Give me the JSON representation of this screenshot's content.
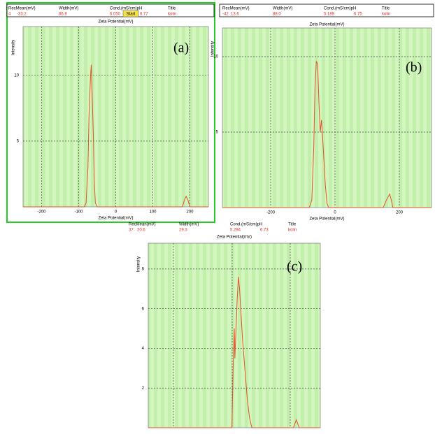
{
  "chart_data": [
    {
      "type": "line",
      "panel_label": "(a)",
      "annotation": "Start",
      "header": {
        "labels": [
          "RecMean(mV)",
          "Width(mV)",
          "Cond.(mS/cm)pH",
          "Title"
        ],
        "values": [
          "4",
          "-33.2",
          "86.9",
          "6.050",
          "6.77",
          "kolin"
        ]
      },
      "top_label": "Zeta Potential(mV)",
      "xlabel": "Zeta Potential(mV)",
      "ylabel": "Intensity",
      "x": [
        -250,
        -85,
        -80,
        -75,
        -72,
        -70,
        -68,
        -66,
        -64,
        -62,
        -60,
        -58,
        -55,
        -50,
        180,
        185,
        190,
        195,
        200,
        250
      ],
      "values": [
        0,
        0,
        0.3,
        3,
        7,
        8.5,
        10,
        10.8,
        9,
        7,
        5,
        2,
        0.3,
        0,
        0,
        0.5,
        0.8,
        0.5,
        0,
        0
      ],
      "color": "#e8502a",
      "xlim": [
        -250,
        250
      ],
      "ylim": [
        0,
        13.7
      ],
      "xticks": [
        -200,
        -100,
        0,
        100,
        200
      ],
      "yticks": [
        5,
        10
      ],
      "grid": true
    },
    {
      "type": "line",
      "panel_label": "(b)",
      "header": {
        "labels": [
          "RecMean(mV)",
          "Width(mV)",
          "Cond.(mS/cm)pH",
          "Title"
        ],
        "values": [
          "-42",
          "13.6",
          "88.0",
          "5.189",
          "6.75",
          "kolin"
        ]
      },
      "top_label": "Zeta Potential(mV)",
      "xlabel": "Zeta Potential(mV)",
      "ylabel": "Intensity",
      "x": [
        -350,
        -80,
        -72,
        -66,
        -62,
        -58,
        -54,
        -50,
        -46,
        -42,
        -38,
        -34,
        -30,
        -25,
        -20,
        150,
        160,
        170,
        175,
        180,
        300
      ],
      "values": [
        0,
        0,
        0.5,
        4,
        8,
        9.7,
        9.5,
        7,
        5,
        5.8,
        4.5,
        3,
        1.5,
        0.3,
        0,
        0,
        0.5,
        0.9,
        0.5,
        0,
        0
      ],
      "color": "#e8502a",
      "xlim": [
        -350,
        300
      ],
      "ylim": [
        0,
        11.9
      ],
      "xticks": [
        -200,
        0,
        200
      ],
      "yticks": [
        5,
        10
      ],
      "grid": true
    },
    {
      "type": "line",
      "panel_label": "(c)",
      "header": {
        "labels": [
          "RecMean(mV)",
          "Width(mV)",
          "Cond.(mS/cm)pH",
          "Title"
        ],
        "values": [
          "37",
          "20.6",
          "29.3",
          "5.294",
          "6.73",
          "kolin"
        ]
      },
      "top_label": "Zeta Potential(mV)",
      "ylabel": "Intensity",
      "x": [
        -143,
        0,
        2,
        4,
        5,
        7,
        9,
        11,
        13,
        15,
        18,
        22,
        26,
        30,
        34,
        105,
        110,
        115,
        151
      ],
      "values": [
        0,
        0,
        3,
        5,
        3.5,
        5,
        6.5,
        7.6,
        7,
        6,
        4.5,
        3,
        1.5,
        0.5,
        0,
        0,
        0.4,
        0,
        0
      ],
      "color": "#e8502a",
      "xlim": [
        -143,
        151
      ],
      "ylim": [
        0,
        9.3
      ],
      "yticks": [
        2,
        4,
        6,
        8
      ],
      "grid": true
    }
  ]
}
